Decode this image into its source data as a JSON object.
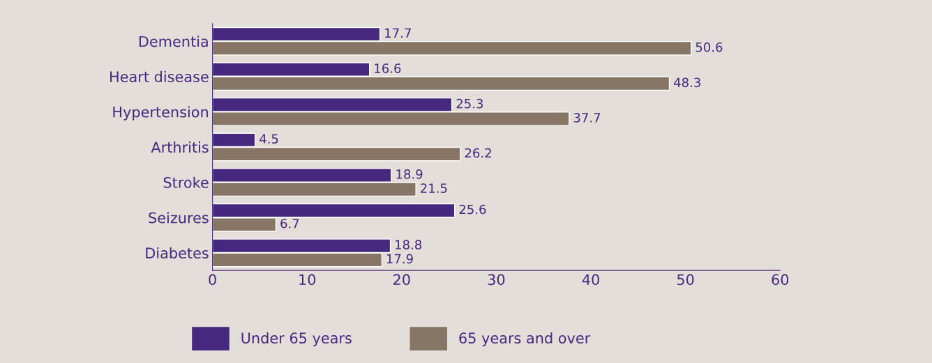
{
  "chart_data": {
    "type": "bar",
    "orientation": "horizontal",
    "categories": [
      "Dementia",
      "Heart disease",
      "Hypertension",
      "Arthritis",
      "Stroke",
      "Seizures",
      "Diabetes"
    ],
    "series": [
      {
        "name": "Under 65 years",
        "color": "#46287f",
        "values": [
          17.7,
          16.6,
          25.3,
          4.5,
          18.9,
          25.6,
          18.8
        ]
      },
      {
        "name": "65 years and over",
        "color": "#877565",
        "values": [
          50.6,
          48.3,
          37.7,
          26.2,
          21.5,
          6.7,
          17.9
        ]
      }
    ],
    "xlim": [
      0,
      60
    ],
    "xticks": [
      0,
      10,
      20,
      30,
      40,
      50,
      60
    ],
    "data_labels": true,
    "legend": "bottom",
    "grid": false
  }
}
